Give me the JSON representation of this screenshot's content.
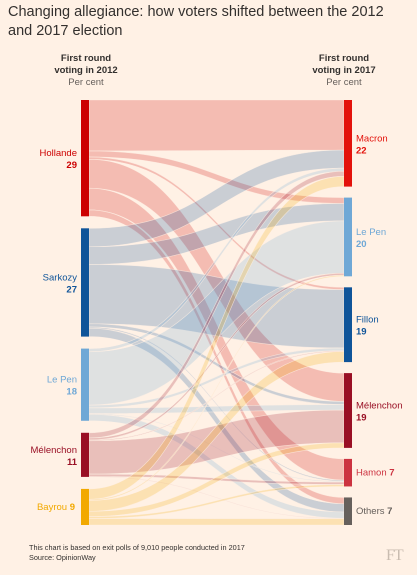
{
  "title": "Changing allegiance: how voters shifted between the 2012 and 2017 election",
  "left_header": {
    "line1": "First round",
    "line2": "voting in 2012",
    "unit": "Per cent"
  },
  "right_header": {
    "line1": "First round",
    "line2": "voting in 2017",
    "unit": "Per cent"
  },
  "footnote": "This chart is based on exit polls of 9,010 people conducted in 2017",
  "source": "Source: OpinionWay",
  "logo": "FT",
  "colors": {
    "Hollande": "#cc0000",
    "Sarkozy": "#0f5499",
    "Le Pen": "#6fa8d6",
    "Mélenchon": "#990f24",
    "Bayrou": "#f2a900",
    "Macron": "#e3120b",
    "Fillon": "#0f5499",
    "Hamon": "#cc3340",
    "Others": "#66605c",
    "Le Pen 2017": "#6fa8d6"
  },
  "chart_data": {
    "type": "sankey",
    "sources": [
      {
        "name": "Hollande",
        "value": 29
      },
      {
        "name": "Sarkozy",
        "value": 27
      },
      {
        "name": "Le Pen",
        "value": 18
      },
      {
        "name": "Mélenchon",
        "value": 11
      },
      {
        "name": "Bayrou",
        "value": 9
      }
    ],
    "targets": [
      {
        "name": "Macron",
        "value": 22
      },
      {
        "name": "Le Pen",
        "value": 20
      },
      {
        "name": "Fillon",
        "value": 19
      },
      {
        "name": "Mélenchon",
        "value": 19
      },
      {
        "name": "Hamon",
        "value": 7
      },
      {
        "name": "Others",
        "value": 7
      }
    ],
    "flows": [
      {
        "from": "Hollande",
        "to": "Macron",
        "value": 12.7
      },
      {
        "from": "Hollande",
        "to": "Le Pen",
        "value": 1.5
      },
      {
        "from": "Hollande",
        "to": "Fillon",
        "value": 0.6
      },
      {
        "from": "Hollande",
        "to": "Mélenchon",
        "value": 7.2
      },
      {
        "from": "Hollande",
        "to": "Hamon",
        "value": 5.4
      },
      {
        "from": "Hollande",
        "to": "Others",
        "value": 1.6
      },
      {
        "from": "Sarkozy",
        "to": "Macron",
        "value": 4.6
      },
      {
        "from": "Sarkozy",
        "to": "Le Pen",
        "value": 4.4
      },
      {
        "from": "Sarkozy",
        "to": "Fillon",
        "value": 14.8
      },
      {
        "from": "Sarkozy",
        "to": "Mélenchon",
        "value": 0.8
      },
      {
        "from": "Sarkozy",
        "to": "Hamon",
        "value": 0.3
      },
      {
        "from": "Sarkozy",
        "to": "Others",
        "value": 2.1
      },
      {
        "from": "Le Pen",
        "to": "Macron",
        "value": 0.8
      },
      {
        "from": "Le Pen",
        "to": "Le Pen",
        "value": 13.3
      },
      {
        "from": "Le Pen",
        "to": "Fillon",
        "value": 0.7
      },
      {
        "from": "Le Pen",
        "to": "Mélenchon",
        "value": 1.4
      },
      {
        "from": "Le Pen",
        "to": "Hamon",
        "value": 0.2
      },
      {
        "from": "Le Pen",
        "to": "Others",
        "value": 1.6
      },
      {
        "from": "Mélenchon",
        "to": "Macron",
        "value": 1.3
      },
      {
        "from": "Mélenchon",
        "to": "Le Pen",
        "value": 0.5
      },
      {
        "from": "Mélenchon",
        "to": "Fillon",
        "value": 0.2
      },
      {
        "from": "Mélenchon",
        "to": "Mélenchon",
        "value": 8.3
      },
      {
        "from": "Mélenchon",
        "to": "Hamon",
        "value": 0.6
      },
      {
        "from": "Mélenchon",
        "to": "Others",
        "value": 0.1
      },
      {
        "from": "Bayrou",
        "to": "Macron",
        "value": 2.6
      },
      {
        "from": "Bayrou",
        "to": "Le Pen",
        "value": 0.3
      },
      {
        "from": "Bayrou",
        "to": "Fillon",
        "value": 2.7
      },
      {
        "from": "Bayrou",
        "to": "Mélenchon",
        "value": 1.3
      },
      {
        "from": "Bayrou",
        "to": "Hamon",
        "value": 0.5
      },
      {
        "from": "Bayrou",
        "to": "Others",
        "value": 1.6
      }
    ]
  }
}
